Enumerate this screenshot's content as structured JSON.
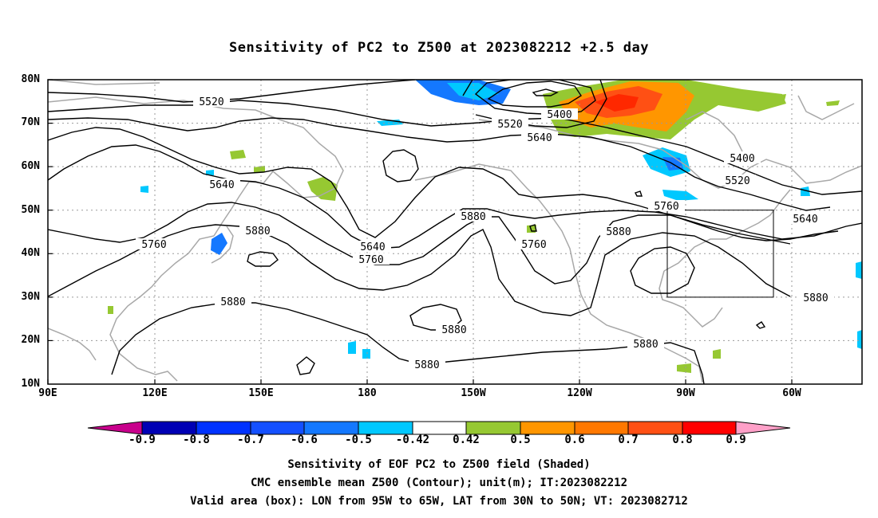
{
  "title": "Sensitivity of PC2 to Z500 at 2023082212 +2.5 day",
  "map": {
    "lat_labels": [
      "80N",
      "70N",
      "60N",
      "50N",
      "40N",
      "30N",
      "20N",
      "10N"
    ],
    "lon_labels": [
      "90E",
      "120E",
      "150E",
      "180",
      "150W",
      "120W",
      "90W",
      "60W"
    ],
    "contour_labels": [
      "5520",
      "5400",
      "5520",
      "5640",
      "5400",
      "5520",
      "5640",
      "5760",
      "5640",
      "5880",
      "5640",
      "5760",
      "5760",
      "5880",
      "5880",
      "5760",
      "5880",
      "5880",
      "5880",
      "5880",
      "5880"
    ],
    "box": {
      "lon_from": "95W",
      "lon_to": "65W",
      "lat_from": "30N",
      "lat_to": "50N"
    },
    "colors": {
      "coast": "#a8a8a8",
      "contour": "#000000",
      "grid": "#9a9a9a"
    }
  },
  "colorbar": {
    "labels": [
      "-0.9",
      "-0.8",
      "-0.7",
      "-0.6",
      "-0.5",
      "-0.42",
      "0.42",
      "0.5",
      "0.6",
      "0.7",
      "0.8",
      "0.9"
    ],
    "colors": [
      "#c8008c",
      "#0000b4",
      "#0032ff",
      "#1450ff",
      "#1478ff",
      "#00a0ff",
      "#00c8ff",
      "#ffffff",
      "#96c832",
      "#ff9600",
      "#ff7800",
      "#ff5014",
      "#ff2800",
      "#ff0000",
      "#ffa0c8"
    ]
  },
  "captions": [
    "Sensitivity of EOF PC2 to Z500 field (Shaded)",
    "CMC ensemble mean Z500 (Contour); unit(m); IT:2023082212",
    "Valid area (box): LON from 95W to 65W, LAT from 30N to 50N; VT: 2023082712"
  ]
}
